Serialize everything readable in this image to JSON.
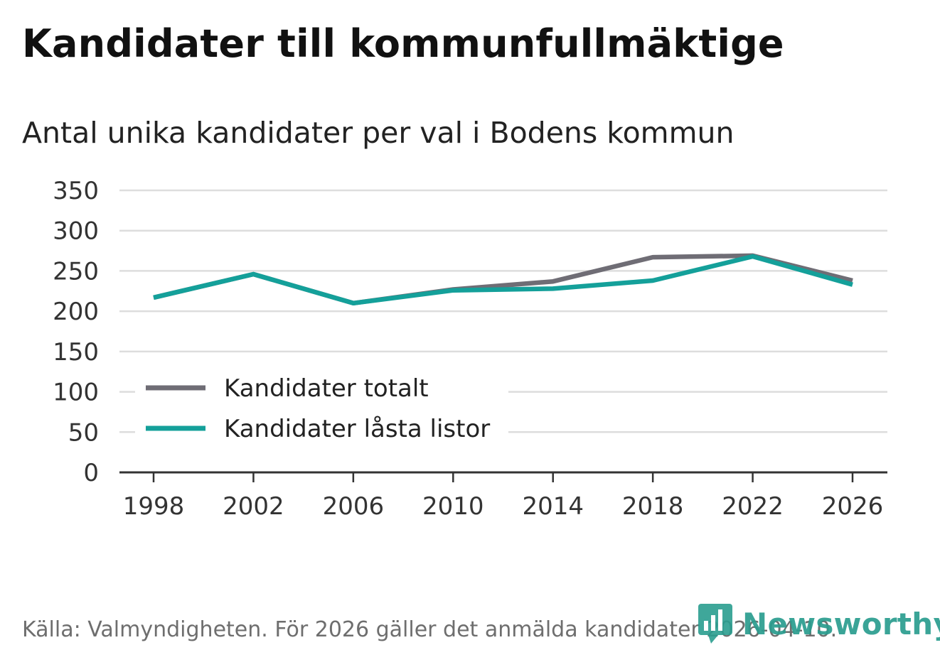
{
  "title": "Kandidater till kommunfullmäktige",
  "subtitle": "Antal unika kandidater per val i Bodens kommun",
  "source": "Källa: Valmyndigheten. För 2026 gäller det anmälda kandidater 2026-04-10.",
  "brand": {
    "name": "Newsworthy",
    "icon": "bar-chart-icon",
    "color": "#2a9d8f"
  },
  "chart_data": {
    "type": "line",
    "title": "Kandidater till kommunfullmäktige",
    "subtitle": "Antal unika kandidater per val i Bodens kommun",
    "xlabel": "",
    "ylabel": "",
    "x": [
      "1998",
      "2002",
      "2006",
      "2010",
      "2014",
      "2018",
      "2022",
      "2026"
    ],
    "ylim": [
      0,
      350
    ],
    "yticks": [
      0,
      50,
      100,
      150,
      200,
      250,
      300,
      350
    ],
    "grid": true,
    "legend_position": "bottom-left",
    "series": [
      {
        "name": "Kandidater totalt",
        "color": "#6f6d75",
        "values": [
          217,
          246,
          210,
          227,
          237,
          267,
          269,
          238
        ]
      },
      {
        "name": "Kandidater låsta listor",
        "color": "#14a09a",
        "values": [
          217,
          246,
          210,
          226,
          228,
          238,
          268,
          233
        ]
      }
    ]
  }
}
